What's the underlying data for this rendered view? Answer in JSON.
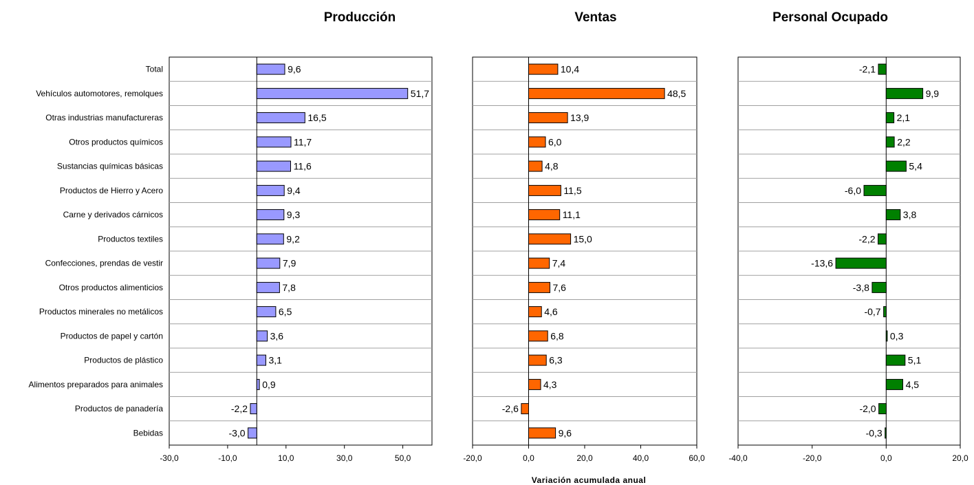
{
  "chart_data": {
    "type": "bar",
    "orientation": "horizontal",
    "xlabel": "Variación acumulada anual",
    "categories": [
      "Total",
      "Vehículos automotores, remolques",
      "Otras industrias manufactureras",
      "Otros productos químicos",
      "Sustancias químicas básicas",
      "Productos de Hierro y Acero",
      "Carne y derivados cárnicos",
      "Productos textiles",
      "Confecciones, prendas de vestir",
      "Otros productos alimenticios",
      "Productos minerales no metálicos",
      "Productos de papel y cartón",
      "Productos de plástico",
      "Alimentos preparados para animales",
      "Productos de panadería",
      "Bebidas"
    ],
    "panels": [
      {
        "title": "Producción",
        "color": "#9999ff",
        "xlim": [
          -30,
          60
        ],
        "ticks": [
          -30,
          -10,
          10,
          30,
          50
        ],
        "tick_labels": [
          "-30,0",
          "-10,0",
          "10,0",
          "30,0",
          "50,0"
        ],
        "values": [
          9.6,
          51.7,
          16.5,
          11.7,
          11.6,
          9.4,
          9.3,
          9.2,
          7.9,
          7.8,
          6.5,
          3.6,
          3.1,
          0.9,
          -2.2,
          -3.0
        ],
        "labels": [
          "9,6",
          "51,7",
          "16,5",
          "11,7",
          "11,6",
          "9,4",
          "9,3",
          "9,2",
          "7,9",
          "7,8",
          "6,5",
          "3,6",
          "3,1",
          "0,9",
          "-2,2",
          "-3,0"
        ]
      },
      {
        "title": "Ventas",
        "color": "#ff6600",
        "xlim": [
          -20,
          60
        ],
        "ticks": [
          -20,
          0,
          20,
          40,
          60
        ],
        "tick_labels": [
          "-20,0",
          "0,0",
          "20,0",
          "40,0",
          "60,0"
        ],
        "values": [
          10.4,
          48.5,
          13.9,
          6.0,
          4.8,
          11.5,
          11.1,
          15.0,
          7.4,
          7.6,
          4.6,
          6.8,
          6.3,
          4.3,
          -2.6,
          9.6
        ],
        "labels": [
          "10,4",
          "48,5",
          "13,9",
          "6,0",
          "4,8",
          "11,5",
          "11,1",
          "15,0",
          "7,4",
          "7,6",
          "4,6",
          "6,8",
          "6,3",
          "4,3",
          "-2,6",
          "9,6"
        ]
      },
      {
        "title": "Personal Ocupado",
        "color": "#008000",
        "xlim": [
          -40,
          20
        ],
        "ticks": [
          -40,
          -20,
          0,
          20
        ],
        "tick_labels": [
          "-40,0",
          "-20,0",
          "0,0",
          "20,0"
        ],
        "values": [
          -2.1,
          9.9,
          2.1,
          2.2,
          5.4,
          -6.0,
          3.8,
          -2.2,
          -13.6,
          -3.8,
          -0.7,
          0.3,
          5.1,
          4.5,
          -2.0,
          -0.3
        ],
        "labels": [
          "-2,1",
          "9,9",
          "2,1",
          "2,2",
          "5,4",
          "-6,0",
          "3,8",
          "-2,2",
          "-13,6",
          "-3,8",
          "-0,7",
          "0,3",
          "5,1",
          "4,5",
          "-2,0",
          "-0,3"
        ]
      }
    ]
  }
}
